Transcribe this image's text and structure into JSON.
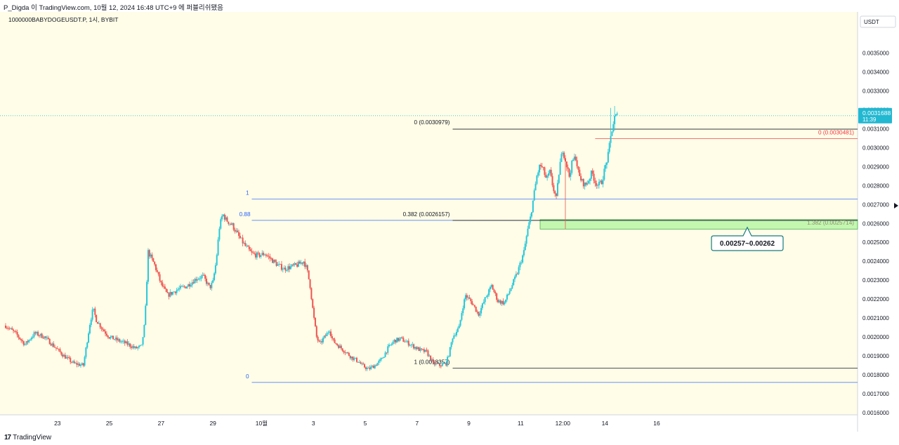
{
  "header": {
    "text": "P_Digda 이 TradingView.com, 10월 12, 2024 16:48 UTC+9 에 퍼블리쉬됐음"
  },
  "symbol_label": "1000000BABYDOGEUSDT.P, 1시, BYBIT",
  "currency": "USDT",
  "footer": {
    "logo_mark": "17",
    "brand": "TradingView"
  },
  "colors": {
    "background": "#fffde7",
    "up": "#26c6da",
    "down": "#ef5350",
    "fib_blue": "#2962ff",
    "fib_black": "#131722",
    "fib_red": "#f23645",
    "zone_fill": "#b9f6a4",
    "zone_border": "#4caf50",
    "price_tag": "#22b8d1",
    "callout_border": "#177b7f"
  },
  "price_tag": {
    "value": "0.0031688",
    "countdown": "11:39"
  },
  "annotations": {
    "fib1_top": "1",
    "fib1_level": "0.88",
    "fib1_bottom": "0",
    "fib2_top": "0 (0.0030979)",
    "fib2_mid": "0.382 (0.0026157)",
    "fib2_bottom": "1 (0.0018357)",
    "fib3_top": "0 (0.0030481)",
    "fib3_ext": "1.382 (0.0025714)",
    "callout": "0.00257~0.00262"
  },
  "chart_data": {
    "type": "candlestick",
    "title": "",
    "xlabel": "",
    "ylabel": "",
    "ylim": [
      0.0016,
      0.00355
    ],
    "y_ticks": [
      "0.0035000",
      "0.0034000",
      "0.0033000",
      "0.0032000",
      "0.0031000",
      "0.0030000",
      "0.0029000",
      "0.0028000",
      "0.0027000",
      "0.0026000",
      "0.0025000",
      "0.0024000",
      "0.0023000",
      "0.0022000",
      "0.0021000",
      "0.0020000",
      "0.0019000",
      "0.0018000",
      "0.0017000",
      "0.0016000"
    ],
    "x_ticks": [
      "23",
      "25",
      "27",
      "29",
      "10월",
      "3",
      "5",
      "7",
      "9",
      "11",
      "12:00",
      "14",
      "16"
    ],
    "close_path": [
      [
        0,
        0.00206
      ],
      [
        3,
        0.00202
      ],
      [
        6,
        0.00196
      ],
      [
        9,
        0.00202
      ],
      [
        12,
        0.002
      ],
      [
        15,
        0.00195
      ],
      [
        18,
        0.0019
      ],
      [
        21,
        0.00186
      ],
      [
        24,
        0.00185
      ],
      [
        26,
        0.00207
      ],
      [
        27,
        0.00215
      ],
      [
        28,
        0.00209
      ],
      [
        30,
        0.00204
      ],
      [
        32,
        0.002
      ],
      [
        35,
        0.00198
      ],
      [
        38,
        0.00196
      ],
      [
        40,
        0.00194
      ],
      [
        42,
        0.00195
      ],
      [
        43,
        0.00208
      ],
      [
        44,
        0.00245
      ],
      [
        46,
        0.00238
      ],
      [
        48,
        0.00228
      ],
      [
        50,
        0.00222
      ],
      [
        53,
        0.00225
      ],
      [
        56,
        0.00227
      ],
      [
        59,
        0.00231
      ],
      [
        61,
        0.00232
      ],
      [
        63,
        0.00226
      ],
      [
        64,
        0.00229
      ],
      [
        65,
        0.0024
      ],
      [
        66,
        0.00258
      ],
      [
        67,
        0.00265
      ],
      [
        68,
        0.00262
      ],
      [
        70,
        0.00259
      ],
      [
        72,
        0.00253
      ],
      [
        74,
        0.00248
      ],
      [
        76,
        0.00244
      ],
      [
        78,
        0.00243
      ],
      [
        80,
        0.00244
      ],
      [
        82,
        0.00241
      ],
      [
        84,
        0.00238
      ],
      [
        86,
        0.00236
      ],
      [
        88,
        0.00237
      ],
      [
        90,
        0.00238
      ],
      [
        92,
        0.0024
      ],
      [
        93,
        0.00236
      ],
      [
        94,
        0.00227
      ],
      [
        95,
        0.00212
      ],
      [
        96,
        0.002
      ],
      [
        97,
        0.00196
      ],
      [
        98,
        0.00199
      ],
      [
        99,
        0.00201
      ],
      [
        100,
        0.00204
      ],
      [
        101,
        0.00198
      ],
      [
        103,
        0.00195
      ],
      [
        105,
        0.00192
      ],
      [
        107,
        0.00189
      ],
      [
        109,
        0.00187
      ],
      [
        110,
        0.00185
      ],
      [
        112,
        0.00183
      ],
      [
        114,
        0.00185
      ],
      [
        116,
        0.00188
      ],
      [
        118,
        0.00194
      ],
      [
        120,
        0.00198
      ],
      [
        122,
        0.00199
      ],
      [
        124,
        0.00197
      ],
      [
        126,
        0.00195
      ],
      [
        128,
        0.00193
      ],
      [
        130,
        0.00192
      ],
      [
        132,
        0.00186
      ],
      [
        134,
        0.00185
      ],
      [
        136,
        0.00186
      ],
      [
        137,
        0.00192
      ],
      [
        138,
        0.002
      ],
      [
        140,
        0.00205
      ],
      [
        141,
        0.00215
      ],
      [
        142,
        0.00222
      ],
      [
        144,
        0.00218
      ],
      [
        146,
        0.00212
      ],
      [
        148,
        0.0022
      ],
      [
        150,
        0.00227
      ],
      [
        152,
        0.00219
      ],
      [
        154,
        0.00218
      ],
      [
        156,
        0.00226
      ],
      [
        158,
        0.00234
      ],
      [
        160,
        0.00245
      ],
      [
        161,
        0.00255
      ],
      [
        162,
        0.00263
      ],
      [
        163,
        0.00274
      ],
      [
        164,
        0.00285
      ],
      [
        165,
        0.00291
      ],
      [
        166,
        0.00288
      ],
      [
        167,
        0.00283
      ],
      [
        168,
        0.00287
      ],
      [
        169,
        0.00279
      ],
      [
        170,
        0.00273
      ],
      [
        171,
        0.0029
      ],
      [
        172,
        0.00299
      ],
      [
        173,
        0.00292
      ],
      [
        174,
        0.00285
      ],
      [
        175,
        0.00293
      ],
      [
        176,
        0.00295
      ],
      [
        177,
        0.00285
      ],
      [
        178,
        0.00282
      ],
      [
        179,
        0.0028
      ],
      [
        180,
        0.00283
      ],
      [
        181,
        0.00287
      ],
      [
        182,
        0.00282
      ],
      [
        183,
        0.0028
      ],
      [
        184,
        0.00282
      ],
      [
        185,
        0.00289
      ],
      [
        186,
        0.00296
      ],
      [
        187,
        0.00308
      ],
      [
        188,
        0.00316
      ],
      [
        189,
        0.00317
      ]
    ],
    "wicks": [
      {
        "x": 173,
        "low": 0.00257,
        "high": 0.00296
      },
      {
        "x": 187,
        "low": 0.003,
        "high": 0.00321
      },
      {
        "x": 188,
        "low": 0.00309,
        "high": 0.00322
      }
    ],
    "x_range": [
      0,
      263
    ],
    "last_price": 0.0031688,
    "fib_levels": [
      {
        "label": "1",
        "price": 0.002728,
        "x0": 76,
        "x1": 263,
        "color": "blue"
      },
      {
        "label": "0.88",
        "price": 0.002616,
        "x0": 76,
        "x1": 263,
        "color": "blue"
      },
      {
        "label": "0",
        "price": 0.00176,
        "x0": 76,
        "x1": 263,
        "color": "blue"
      },
      {
        "label": "0 (0.0030979)",
        "price": 0.0030979,
        "x0": 138,
        "x1": 263,
        "color": "black"
      },
      {
        "label": "0.382 (0.0026157)",
        "price": 0.0026157,
        "x0": 138,
        "x1": 263,
        "color": "black"
      },
      {
        "label": "1 (0.0018357)",
        "price": 0.0018357,
        "x0": 138,
        "x1": 263,
        "color": "black"
      },
      {
        "label": "0 (0.0030481)",
        "price": 0.0030481,
        "x0": 182,
        "x1": 263,
        "color": "red"
      }
    ],
    "zone": {
      "low": 0.00257,
      "high": 0.00262,
      "x0": 165,
      "x1": 263
    }
  }
}
